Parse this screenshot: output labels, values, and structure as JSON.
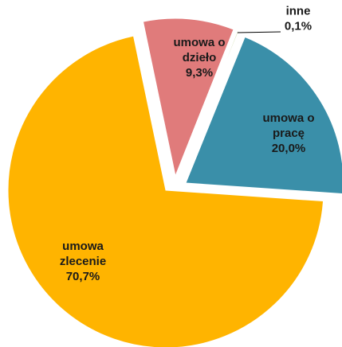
{
  "chart_data": {
    "type": "pie",
    "exploded": true,
    "slices": [
      {
        "label": [
          "umowa o",
          "pracę"
        ],
        "value": "20,0%",
        "pct": 20.0,
        "color": "#3a8fa9"
      },
      {
        "label": [
          "umowa",
          "zlecenie"
        ],
        "value": "70,7%",
        "pct": 70.7,
        "color": "#ffb400"
      },
      {
        "label": [
          "umowa o",
          "dzieło"
        ],
        "value": "9,3%",
        "pct": 9.3,
        "color": "#e07b7b"
      },
      {
        "label": [
          "inne"
        ],
        "value": "0,1%",
        "pct": 0.1,
        "color": "#9bbb59"
      }
    ]
  }
}
